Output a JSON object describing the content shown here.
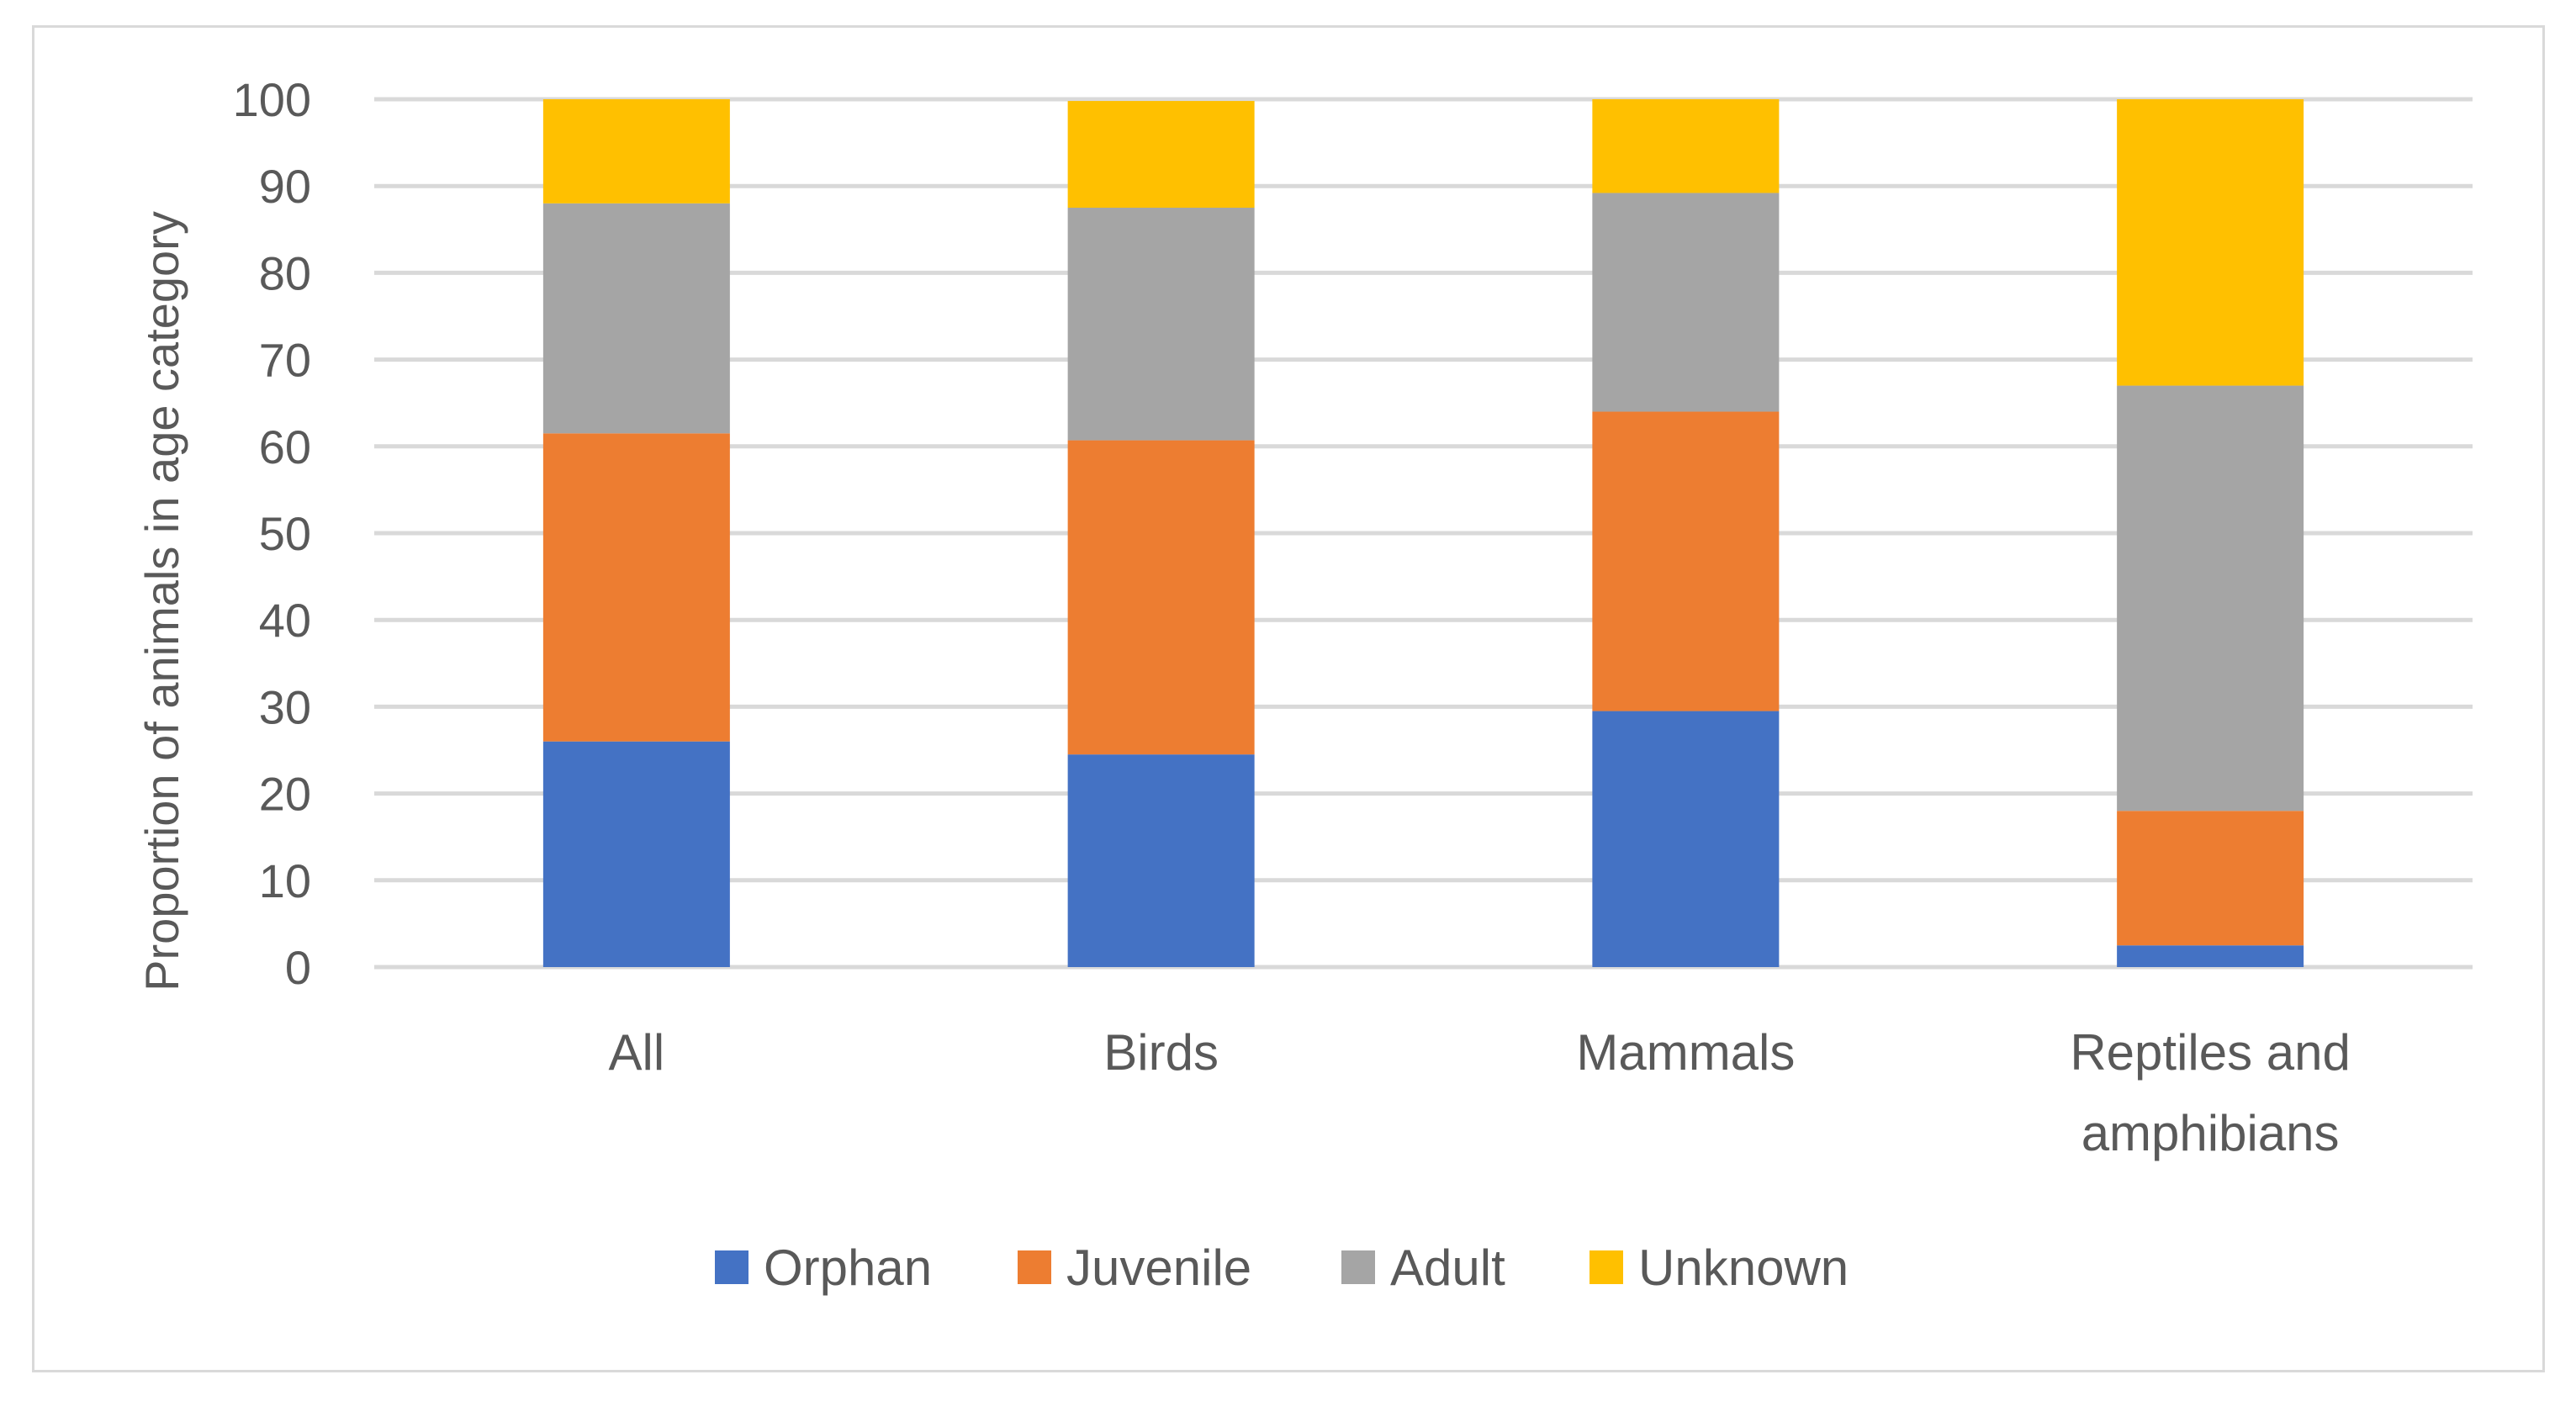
{
  "chart_data": {
    "type": "bar",
    "stacked": true,
    "title": "",
    "xlabel": "",
    "ylabel": "Proportion of animals in age category",
    "ylim": [
      0,
      100
    ],
    "yticks": [
      0,
      10,
      20,
      30,
      40,
      50,
      60,
      70,
      80,
      90,
      100
    ],
    "grid": true,
    "legend_position": "bottom",
    "categories": [
      [
        "All"
      ],
      [
        "Birds"
      ],
      [
        "Mammals"
      ],
      [
        "Reptiles and",
        "amphibians"
      ]
    ],
    "series": [
      {
        "name": "Orphan",
        "color": "#4472C4",
        "values": [
          26,
          24.5,
          29.5,
          2.5
        ]
      },
      {
        "name": "Juvenile",
        "color": "#ED7D31",
        "values": [
          35.5,
          36.2,
          34.5,
          15.5
        ]
      },
      {
        "name": "Adult",
        "color": "#A5A5A5",
        "values": [
          26.5,
          26.8,
          25.2,
          49
        ]
      },
      {
        "name": "Unknown",
        "color": "#FFC000",
        "values": [
          12,
          12.3,
          10.8,
          33
        ]
      }
    ]
  },
  "colors": {
    "gridline": "#d9d9d9",
    "text": "#595959",
    "frame": "#d9d9d9"
  }
}
